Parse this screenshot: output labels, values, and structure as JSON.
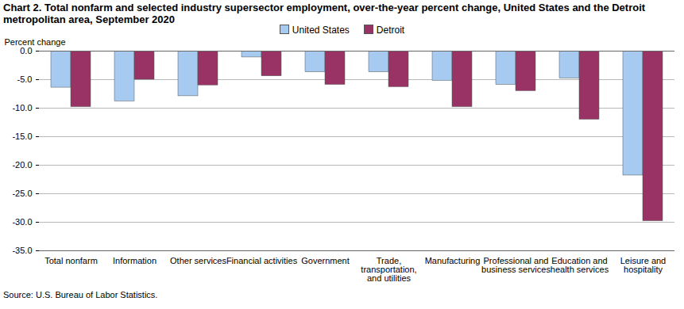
{
  "chart_data": {
    "type": "bar",
    "title": "Chart 2. Total nonfarm and selected industry  supersector  employment, over-the-year percent change, United States and the Detroit metropolitan area, September 2020",
    "y_label": "Percent change",
    "caption": "Source: U.S. Bureau of Labor Statistics.",
    "categories": [
      "Total nonfarm",
      "Information",
      "Other services",
      "Financial activities",
      "Government",
      "Trade, transportation, and utilities",
      "Manufacturing",
      "Professional and business services",
      "Education and health services",
      "Leisure and hospitality"
    ],
    "series": [
      {
        "name": "United States",
        "color": "#a6caf0",
        "values": [
          -6.4,
          -8.8,
          -7.9,
          -1.1,
          -3.7,
          -3.7,
          -5.2,
          -5.9,
          -4.8,
          -21.8
        ]
      },
      {
        "name": "Detroit",
        "color": "#993366",
        "values": [
          -9.8,
          -5.0,
          -6.0,
          -4.4,
          -5.9,
          -6.3,
          -9.8,
          -7.0,
          -12.0,
          -29.8
        ]
      }
    ],
    "ylim": [
      -35,
      0
    ],
    "yticks": [
      {
        "value": 0,
        "label": "0.0"
      },
      {
        "value": -5,
        "label": "-5.0"
      },
      {
        "value": -10,
        "label": "-10.0"
      },
      {
        "value": -15,
        "label": "-15.0"
      },
      {
        "value": -20,
        "label": "-20.0"
      },
      {
        "value": -25,
        "label": "-25.0"
      },
      {
        "value": -30,
        "label": "-30.0"
      },
      {
        "value": -35,
        "label": "-35.0"
      }
    ],
    "grid": true,
    "legend": "top"
  }
}
